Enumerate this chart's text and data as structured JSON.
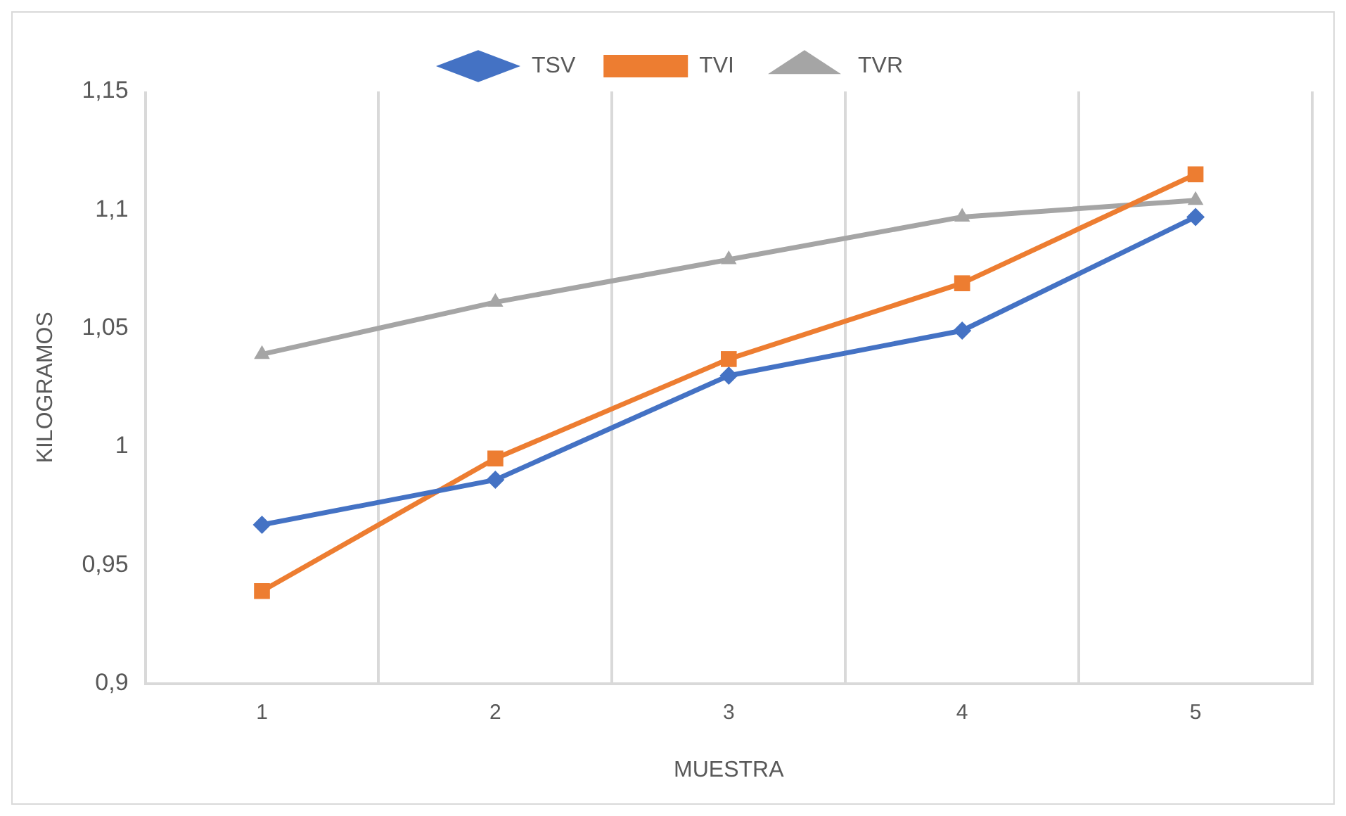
{
  "chart_data": {
    "type": "line",
    "xlabel": "MUESTRA",
    "ylabel": "KILOGRAMOS",
    "categories": [
      "1",
      "2",
      "3",
      "4",
      "5"
    ],
    "series": [
      {
        "name": "TSV",
        "color": "#4472c4",
        "marker": "diamond",
        "values": [
          0.967,
          0.986,
          1.03,
          1.049,
          1.097
        ]
      },
      {
        "name": "TVI",
        "color": "#ed7d31",
        "marker": "square",
        "values": [
          0.939,
          0.995,
          1.037,
          1.069,
          1.115
        ]
      },
      {
        "name": "TVR",
        "color": "#a5a5a5",
        "marker": "triangle",
        "values": [
          1.039,
          1.061,
          1.079,
          1.097,
          1.104
        ]
      }
    ],
    "ylim": [
      0.9,
      1.15
    ],
    "yticks": [
      {
        "value": 0.9,
        "label": "0,9"
      },
      {
        "value": 0.95,
        "label": "0,95"
      },
      {
        "value": 1,
        "label": "1"
      },
      {
        "value": 1.05,
        "label": "1,05"
      },
      {
        "value": 1.1,
        "label": "1,1"
      },
      {
        "value": 1.15,
        "label": "1,15"
      }
    ],
    "grid": "x",
    "legend": "top",
    "line_style": "solid"
  }
}
